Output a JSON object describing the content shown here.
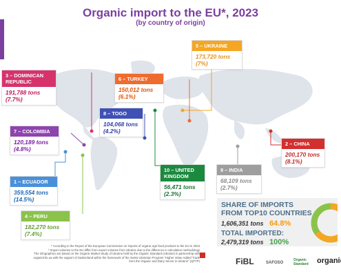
{
  "header": {
    "title": "Organic import to the EU*, 2023",
    "subtitle": "(by country of origin)"
  },
  "countries": [
    {
      "key": "ukraine",
      "rank_name": "5 – UKRAINE",
      "tons": "173,720 tons",
      "share": "(7%)",
      "color": "#f5a623",
      "text_color": "#e8901a"
    },
    {
      "key": "dominican",
      "rank_name": "3 – DOMINICAN REPUBLIC",
      "tons": "191,788 tons",
      "share": "(7.7%)",
      "color": "#d6336c",
      "text_color": "#c2185b"
    },
    {
      "key": "turkey",
      "rank_name": "6 – TURKEY",
      "tons": "150,012 tons",
      "share": "(6.1%)",
      "color": "#ef6b2e",
      "text_color": "#e65100"
    },
    {
      "key": "togo",
      "rank_name": "8 – TOGO",
      "tons": "104,068 tons",
      "share": "(4.2%)",
      "color": "#3f51b5",
      "text_color": "#303f9f"
    },
    {
      "key": "colombia",
      "rank_name": "7 – COLOMBIA",
      "tons": "120,189 tons",
      "share": "(4.8%)",
      "color": "#8e44ad",
      "text_color": "#7b1fa2"
    },
    {
      "key": "china",
      "rank_name": "2 – CHINA",
      "tons": "200,170 tons",
      "share": "(8.1%)",
      "color": "#d32f2f",
      "text_color": "#c62828"
    },
    {
      "key": "uk",
      "rank_name": "10 – UNITED KINGDOM",
      "tons": "56,471 tons",
      "share": "(2.3%)",
      "color": "#1b8a3f",
      "text_color": "#1b6e35"
    },
    {
      "key": "india",
      "rank_name": "9 – INDIA",
      "tons": "68,109 tons",
      "share": "(2.7%)",
      "color": "#9e9e9e",
      "text_color": "#8a8a8a"
    },
    {
      "key": "ecuador",
      "rank_name": "1 – ECUADOR",
      "tons": "359,554 tons",
      "share": "(14.5%)",
      "color": "#4a90d9",
      "text_color": "#1e6bb8"
    },
    {
      "key": "peru",
      "rank_name": "4 – PERU",
      "tons": "182,270 tons",
      "share": "(7.4%)",
      "color": "#8bc34a",
      "text_color": "#689f38"
    }
  ],
  "share_box": {
    "title_line1": "SHARE OF IMPORTS",
    "title_line2": "FROM TOP10 COUNTRIES",
    "top10_tons": "1,606,351 tons",
    "top10_pct": "64.8%",
    "total_label": "TOTAL IMPORTED:",
    "total_tons": "2,479,319 tons",
    "total_pct": "100%",
    "donut_fraction": 0.648,
    "colors": {
      "orange": "#f5a623",
      "green": "#8bc34a",
      "pct_orange": "#f39c12",
      "pct_green": "#43a047"
    }
  },
  "footnote": {
    "line1": "* According to the Report of the European Commission on imports of organic agri-food products to the EU in 2023",
    "line2": "* Import volumes to the EU differ from export volumes from Ukraine due to the difference in calculation methodology",
    "line3": "The infographics are based on the Organic Market Study of Ukraine held by the Organic Standard (Ukraine) in partnership with",
    "line4": "organicinfo.ua with the support of Switzerland within the framework of the Swiss-Ukrainian Program “Higher Value Added Trade",
    "line5": "from the Organic and Dairy Sector in Ukraine” (QFTP)"
  },
  "logos": {
    "fibl": "FiBL",
    "safoso": "SAFOSO",
    "organic_standard": "Organic Standard",
    "organic": "organic"
  }
}
